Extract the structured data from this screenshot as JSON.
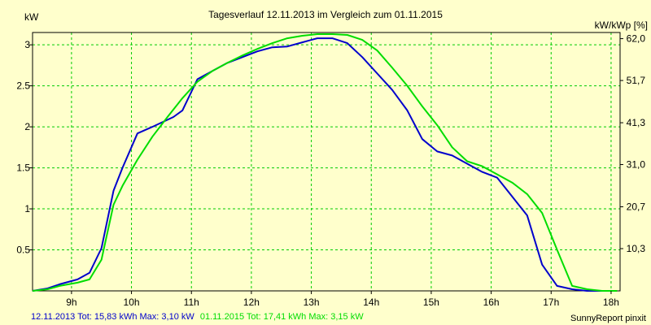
{
  "chart_data": {
    "type": "line",
    "title": "Tagesverlauf 12.11.2013 im Vergleich zum 01.11.2015",
    "ylabel_left": "kW",
    "ylabel_right": "kW/kWp [%]",
    "xlim": [
      8.35,
      18.15
    ],
    "ylim": [
      0,
      3.15
    ],
    "x_ticks": [
      9,
      10,
      11,
      12,
      13,
      14,
      15,
      16,
      17,
      18
    ],
    "x_tick_labels": [
      "9h",
      "10h",
      "11h",
      "12h",
      "13h",
      "14h",
      "15h",
      "16h",
      "17h",
      "18h"
    ],
    "y_ticks_left": [
      0.5,
      1,
      1.5,
      2,
      2.5,
      3
    ],
    "y_tick_labels_left": [
      "0.5",
      "1",
      "1.5",
      "2",
      "2.5",
      "3"
    ],
    "y_ticks_right_at": [
      0.515,
      1.025,
      1.54,
      2.05,
      2.565,
      3.075
    ],
    "y_tick_labels_right": [
      "10,3",
      "20,7",
      "31,0",
      "41,3",
      "51,7",
      "62,0"
    ],
    "grid": true,
    "colors": {
      "background": "#ffffcc",
      "grid": "#00cc00",
      "frame": "#000000"
    },
    "series": [
      {
        "label": "12.11.2013 Tot: 15,83 kWh Max: 3,10 kW",
        "color": "#0000cc",
        "x": [
          8.35,
          8.6,
          8.8,
          9.1,
          9.3,
          9.5,
          9.7,
          9.85,
          10.1,
          10.35,
          10.7,
          10.85,
          11.1,
          11.35,
          11.6,
          11.85,
          12.1,
          12.35,
          12.6,
          12.85,
          13.1,
          13.35,
          13.6,
          13.85,
          14.1,
          14.35,
          14.6,
          14.85,
          15.1,
          15.35,
          15.6,
          15.85,
          16.1,
          16.35,
          16.6,
          16.85,
          17.1,
          17.35,
          17.6,
          17.85
        ],
        "y": [
          0.0,
          0.03,
          0.08,
          0.14,
          0.22,
          0.52,
          1.22,
          1.5,
          1.92,
          2.0,
          2.12,
          2.2,
          2.58,
          2.68,
          2.78,
          2.85,
          2.92,
          2.97,
          2.98,
          3.03,
          3.08,
          3.08,
          3.02,
          2.85,
          2.65,
          2.45,
          2.2,
          1.85,
          1.7,
          1.65,
          1.55,
          1.45,
          1.38,
          1.15,
          0.92,
          0.32,
          0.06,
          0.02,
          0.0,
          0.0
        ]
      },
      {
        "label": "01.11.2015 Tot: 17,41 kWh Max: 3,15 kW",
        "color": "#00dd00",
        "x": [
          8.35,
          8.6,
          8.8,
          9.1,
          9.3,
          9.5,
          9.7,
          9.85,
          10.1,
          10.35,
          10.6,
          10.85,
          11.1,
          11.35,
          11.6,
          11.85,
          12.1,
          12.35,
          12.6,
          12.85,
          13.1,
          13.35,
          13.6,
          13.85,
          14.1,
          14.35,
          14.6,
          14.85,
          15.1,
          15.35,
          15.6,
          15.85,
          16.1,
          16.35,
          16.6,
          16.85,
          17.1,
          17.35,
          17.6,
          17.85,
          18.1
        ],
        "y": [
          0.0,
          0.02,
          0.06,
          0.1,
          0.14,
          0.38,
          1.05,
          1.28,
          1.6,
          1.88,
          2.12,
          2.35,
          2.55,
          2.68,
          2.78,
          2.87,
          2.95,
          3.02,
          3.08,
          3.11,
          3.13,
          3.13,
          3.12,
          3.06,
          2.93,
          2.72,
          2.5,
          2.25,
          2.02,
          1.75,
          1.58,
          1.52,
          1.42,
          1.32,
          1.18,
          0.95,
          0.5,
          0.06,
          0.02,
          0.0,
          0.0
        ]
      }
    ],
    "footer_right": "SunnyReport pinxit"
  }
}
